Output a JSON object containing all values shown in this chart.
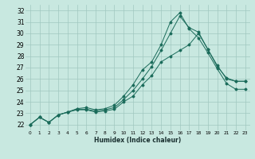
{
  "title": "",
  "xlabel": "Humidex (Indice chaleur)",
  "ylabel": "",
  "bg_color": "#c8e8e0",
  "grid_color": "#a0c8c0",
  "line_color": "#1a6b5a",
  "xlim": [
    -0.5,
    23.5
  ],
  "ylim": [
    21.5,
    32.5
  ],
  "xticks": [
    0,
    1,
    2,
    3,
    4,
    5,
    6,
    7,
    8,
    9,
    10,
    11,
    12,
    13,
    14,
    15,
    16,
    17,
    18,
    19,
    20,
    21,
    22,
    23
  ],
  "yticks": [
    22,
    23,
    24,
    25,
    26,
    27,
    28,
    29,
    30,
    31,
    32
  ],
  "series1": [
    22.0,
    22.65,
    22.2,
    22.85,
    23.1,
    23.3,
    23.3,
    23.1,
    23.2,
    23.35,
    24.0,
    24.5,
    25.5,
    26.3,
    27.5,
    28.0,
    28.5,
    29.0,
    30.0,
    28.6,
    27.2,
    26.0,
    25.8,
    25.8
  ],
  "series2": [
    22.0,
    22.65,
    22.2,
    22.85,
    23.1,
    23.35,
    23.35,
    23.2,
    23.3,
    23.5,
    24.2,
    25.0,
    26.0,
    27.1,
    28.5,
    30.0,
    31.5,
    30.5,
    30.1,
    28.6,
    27.1,
    26.1,
    25.8,
    25.8
  ],
  "series3": [
    22.0,
    22.65,
    22.2,
    22.85,
    23.1,
    23.4,
    23.5,
    23.3,
    23.4,
    23.7,
    24.5,
    25.5,
    26.8,
    27.5,
    29.0,
    31.0,
    31.8,
    30.4,
    29.6,
    28.3,
    26.9,
    25.6,
    25.1,
    25.1
  ],
  "x_series": [
    0,
    1,
    2,
    3,
    4,
    5,
    6,
    7,
    8,
    9,
    10,
    11,
    12,
    13,
    14,
    15,
    16,
    17,
    18,
    19,
    20,
    21,
    22,
    23
  ]
}
